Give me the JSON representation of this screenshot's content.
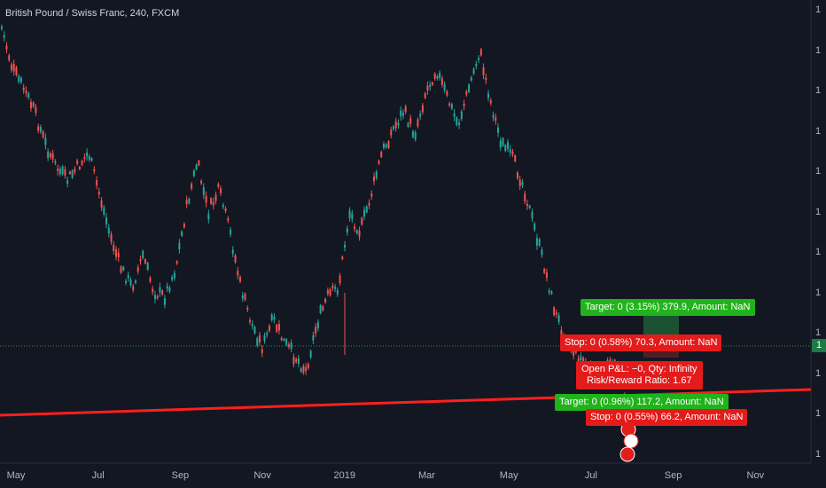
{
  "header": {
    "title": "British Pound / Swiss Franc, 240, FXCM"
  },
  "colors": {
    "background": "#131722",
    "candle_up": "#26a69a",
    "candle_down": "#ef5350",
    "trendline": "#ff1f1f",
    "target_green": "#21b31b",
    "stop_red": "#e41b1b"
  },
  "y_axis": {
    "ticks": [
      "1",
      "1",
      "1",
      "1",
      "1",
      "1",
      "1",
      "1",
      "1",
      "1",
      "1",
      "1"
    ],
    "current_price": "1"
  },
  "labels": {
    "target_1": "Target: 0 (3.15%) 379.9, Amount: NaN",
    "stop_1": "Stop: 0 (0.58%) 70.3, Amount: NaN",
    "pnl_line1": "Open P&L: −0, Qty: Infinity",
    "pnl_line2": "Risk/Reward Ratio: 1.67",
    "target_2": "Target: 0 (0.96%) 117.2, Amount: NaN",
    "stop_2": "Stop: 0 (0.55%) 66.2, Amount: NaN"
  },
  "chart_data": {
    "type": "line",
    "title": "British Pound / Swiss Franc, 240, FXCM",
    "x_ticks": [
      "May",
      "Jul",
      "Sep",
      "Nov",
      "2019",
      "Mar",
      "May",
      "Jul",
      "Sep",
      "Nov"
    ],
    "series": [
      {
        "values": [
          0.06,
          0.15,
          0.19,
          0.24,
          0.31,
          0.36,
          0.39,
          0.36,
          0.33,
          0.42,
          0.51,
          0.58,
          0.62,
          0.55,
          0.63,
          0.64,
          0.58,
          0.45,
          0.35,
          0.46,
          0.41,
          0.5,
          0.62,
          0.7,
          0.75,
          0.69,
          0.74,
          0.77,
          0.8,
          0.7,
          0.64,
          0.62,
          0.46,
          0.5,
          0.42,
          0.33,
          0.28,
          0.24,
          0.29,
          0.2,
          0.15,
          0.21,
          0.27,
          0.19,
          0.11,
          0.22,
          0.31,
          0.34,
          0.4,
          0.49,
          0.58,
          0.68,
          0.73,
          0.77,
          0.79,
          0.82,
          0.77,
          0.82,
          0.92
        ]
      }
    ]
  }
}
